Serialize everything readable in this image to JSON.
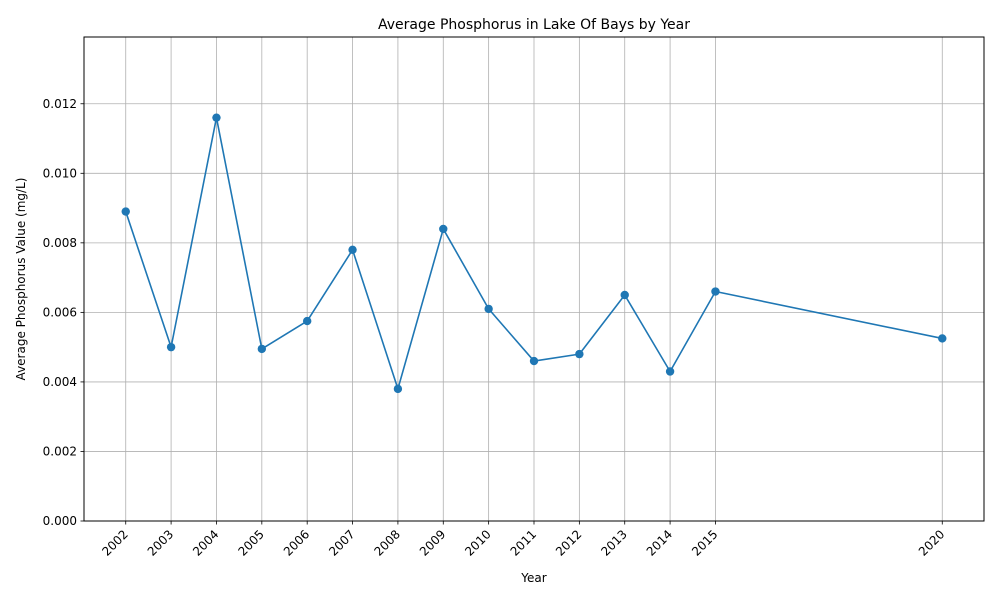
{
  "chart_data": {
    "type": "line",
    "title": "Average Phosphorus in Lake Of Bays by Year",
    "xlabel": "Year",
    "ylabel": "Average Phosphorus Value (mg/L)",
    "x": [
      2002,
      2003,
      2004,
      2005,
      2006,
      2007,
      2008,
      2009,
      2010,
      2011,
      2012,
      2013,
      2014,
      2015,
      2020
    ],
    "x_tick_labels": [
      "2002",
      "2003",
      "2004",
      "2005",
      "2006",
      "2007",
      "2008",
      "2009",
      "2010",
      "2011",
      "2012",
      "2013",
      "2014",
      "2015",
      "2020"
    ],
    "series": [
      {
        "values": [
          0.0089,
          0.005,
          0.0116,
          0.00495,
          0.00575,
          0.0078,
          0.0038,
          0.0084,
          0.0061,
          0.0046,
          0.0048,
          0.0065,
          0.0043,
          0.0066,
          0.00525
        ],
        "color": "#1f77b4"
      }
    ],
    "y_ticks": [
      0,
      0.002,
      0.004,
      0.006,
      0.008,
      0.01,
      0.012
    ],
    "y_tick_labels": [
      "0.000",
      "0.002",
      "0.004",
      "0.006",
      "0.008",
      "0.010",
      "0.012"
    ],
    "xlim": [
      2001.08,
      2020.92
    ],
    "ylim": [
      0,
      0.01392
    ],
    "grid": true,
    "legend": "none"
  }
}
